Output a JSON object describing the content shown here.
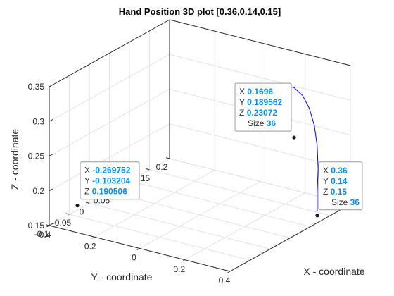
{
  "chart_data": {
    "type": "line",
    "title": "Hand Position 3D plot [0.36,0.14,0.15]",
    "xlabel": "X - coordinate",
    "ylabel": "Y - coordinate",
    "zlabel": "Z - coordinate",
    "xlim": [
      -0.4,
      0.4
    ],
    "ylim": [
      -0.1,
      0.2
    ],
    "zlim": [
      0.15,
      0.35
    ],
    "xticks": [
      "-0.4",
      "-0.2",
      "0",
      "0.2",
      "0.4"
    ],
    "yticks": [
      "0.2",
      "0.15",
      "0.1",
      "0.05",
      "0",
      "-0.05",
      "-0.1"
    ],
    "zticks": [
      "0.15",
      "0.2",
      "0.25",
      "0.3",
      "0.35"
    ],
    "grid": true,
    "line_color": "#0000ff",
    "series": [
      {
        "points": [
          [
            0.36,
            0.14,
            0.157
          ],
          [
            0.36,
            0.14,
            0.185
          ],
          [
            0.355,
            0.145,
            0.215
          ],
          [
            0.34,
            0.151,
            0.245
          ],
          [
            0.315,
            0.158,
            0.27
          ],
          [
            0.28,
            0.165,
            0.29
          ],
          [
            0.24,
            0.171,
            0.303
          ],
          [
            0.19,
            0.178,
            0.308
          ],
          [
            0.14,
            0.183,
            0.305
          ],
          [
            0.105,
            0.186,
            0.295
          ],
          [
            0.085,
            0.188,
            0.28
          ],
          [
            0.075,
            0.189,
            0.263
          ],
          [
            0.072,
            0.19,
            0.245
          ],
          [
            0.072,
            0.19,
            0.234
          ]
        ]
      }
    ],
    "datatips": [
      {
        "point": [
          0.1696,
          0.189562,
          0.23072
        ],
        "labels": {
          "x": "0.1696",
          "y": "0.189562",
          "z": "0.23072",
          "size": "36"
        }
      },
      {
        "point": [
          0.36,
          0.14,
          0.15
        ],
        "labels": {
          "x": "0.36",
          "y": "0.14",
          "z": "0.15",
          "size": "36"
        }
      },
      {
        "point": [
          -0.269752,
          -0.103204,
          0.190506
        ],
        "labels": {
          "x": "-0.269752",
          "y": "-0.103204",
          "z": "0.190506"
        }
      }
    ]
  },
  "labels": {
    "x_key": "X",
    "y_key": "Y",
    "z_key": "Z",
    "size_key": "Size"
  }
}
